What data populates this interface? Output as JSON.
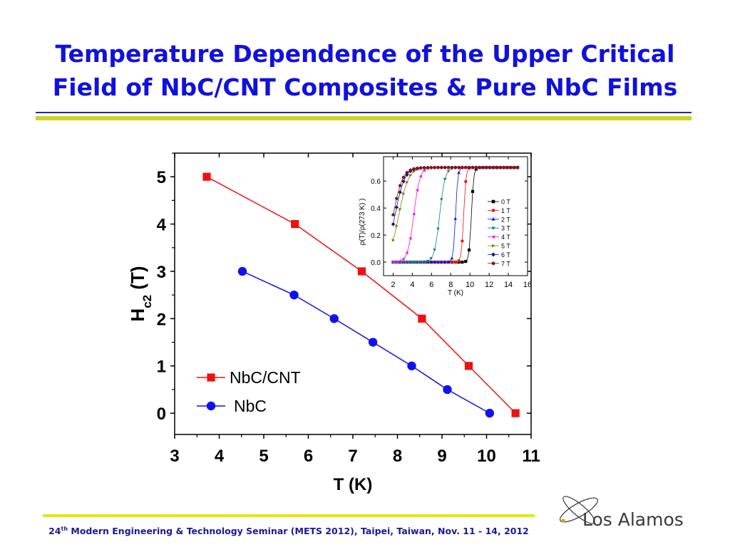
{
  "title_line1": "Temperature Dependence of the Upper Critical",
  "title_line2": "Field of NbC/CNT Composites & Pure NbC Films",
  "footer": {
    "num": "24",
    "sup": "th",
    "text": " Modern Engineering & Technology Seminar (METS 2012), Taipei, Taiwan, Nov. 11 - 14, 2012"
  },
  "logo_text": "Los Alamos",
  "colors": {
    "title": "#1111dd",
    "red": "#ee1111",
    "blue": "#1111ee",
    "rule_yellow": "#cfd22a",
    "footer_yellow": "#e9e70a"
  },
  "chart_data": [
    {
      "type": "line",
      "xlabel": "T (K)",
      "ylabel": "H",
      "ylabel_sub": "c2",
      "ylabel_unit": " (T)",
      "xlim": [
        3,
        11
      ],
      "ylim": [
        -0.45,
        5.5
      ],
      "xticks": [
        "3",
        "4",
        "5",
        "6",
        "7",
        "8",
        "9",
        "10",
        "11"
      ],
      "yticks": [
        "0",
        "1",
        "2",
        "3",
        "4",
        "5"
      ],
      "series": [
        {
          "name": "NbC/CNT",
          "marker": "square",
          "color": "#ee1111",
          "x": [
            3.72,
            5.7,
            7.2,
            8.55,
            9.6,
            10.65
          ],
          "y": [
            5,
            4,
            3,
            2,
            1,
            0
          ]
        },
        {
          "name": "NbC",
          "marker": "circle",
          "color": "#1111ee",
          "x": [
            4.52,
            5.68,
            6.58,
            7.45,
            8.32,
            9.12,
            10.07
          ],
          "y": [
            3,
            2.5,
            2,
            1.5,
            1,
            0.5,
            0
          ]
        }
      ],
      "legend": "lower-left"
    },
    {
      "type": "line",
      "xlabel": "T (K)",
      "ylabel": "ρ(T)/ρ(273 K) )",
      "xlim": [
        1,
        16
      ],
      "ylim": [
        -0.1,
        0.78
      ],
      "xticks": [
        "2",
        "4",
        "6",
        "8",
        "10",
        "12",
        "14",
        "16"
      ],
      "yticks": [
        "0.0",
        "0.2",
        "0.4",
        "0.6"
      ],
      "legend": "right",
      "series": [
        {
          "name": "0 T",
          "marker": "square",
          "color": "#000000",
          "tc": 10.15
        },
        {
          "name": "1 T",
          "marker": "circle",
          "color": "#ee1111",
          "tc": 9.35
        },
        {
          "name": "2 T",
          "marker": "triangle-up",
          "color": "#1111ee",
          "tc": 8.5
        },
        {
          "name": "3 T",
          "marker": "triangle-down",
          "color": "#11807f",
          "tc": 6.85
        },
        {
          "name": "4 T",
          "marker": "triangle-left",
          "color": "#ee11ee",
          "tc": 4.15
        },
        {
          "name": "5 T",
          "marker": "triangle-right",
          "color": "#808011",
          "tc": 2.6
        },
        {
          "name": "6 T",
          "marker": "diamond",
          "color": "#111188",
          "tc": 2.2
        },
        {
          "name": "7 T",
          "marker": "hexagon",
          "color": "#881111",
          "tc": 2.0
        }
      ]
    }
  ]
}
